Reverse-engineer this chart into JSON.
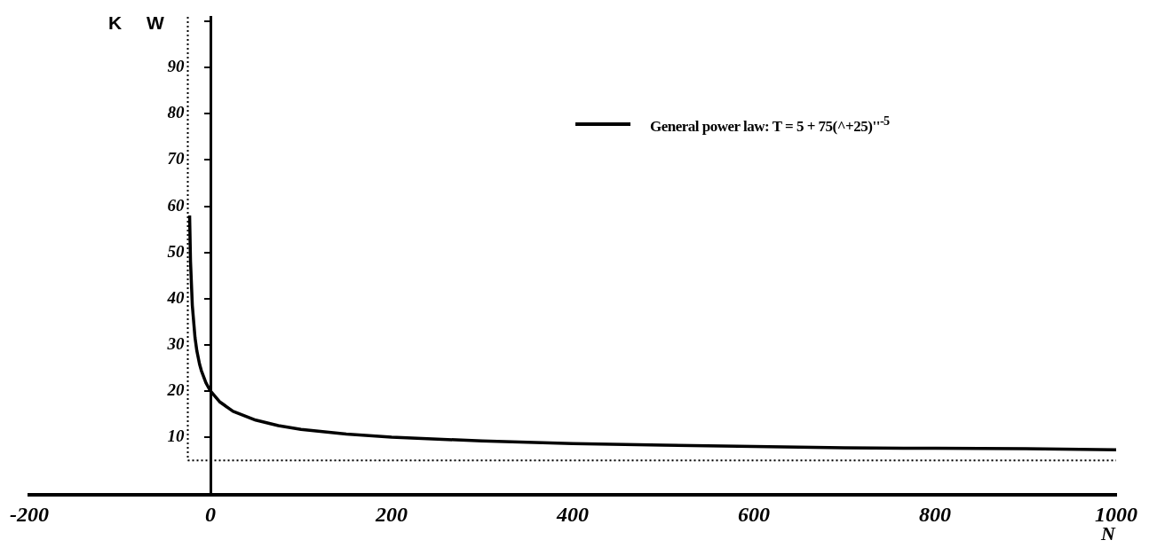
{
  "chart_data": {
    "type": "line",
    "xlabel": "N",
    "ylabel": "K W",
    "series": [
      {
        "name": "General power law: T = 5 + 75(^+25)''$^{-5}$",
        "color": "#000000",
        "x": [
          -23,
          -22,
          -20,
          -17,
          -15,
          -12,
          -10,
          -5,
          0,
          10,
          25,
          50,
          75,
          100,
          150,
          200,
          300,
          400,
          500,
          600,
          700,
          800,
          900,
          1000
        ],
        "values": [
          58,
          48,
          38.5,
          31.5,
          28.7,
          25.8,
          24.4,
          21.8,
          20,
          17.7,
          15.6,
          13.7,
          12.5,
          11.7,
          10.7,
          10,
          9.2,
          8.6,
          8.3,
          8,
          7.7,
          7.6,
          7.5,
          7.3
        ]
      }
    ],
    "xlim": [
      -200,
      1000
    ],
    "xticks": [
      -200,
      0,
      200,
      400,
      600,
      800,
      1000
    ],
    "ylim": [
      -2.5,
      101
    ],
    "yticks": [
      10,
      20,
      30,
      40,
      50,
      60,
      70,
      80,
      90,
      {
        "value": 100,
        "label": null
      }
    ],
    "ref_lines": [
      {
        "axis": "y",
        "value": 5,
        "color": "#000000",
        "line_style": "dotted"
      },
      {
        "axis": "x",
        "value": -25,
        "color": "#000000",
        "line_style": "dotted"
      }
    ],
    "grid": false,
    "legend": "top right",
    "marker": "none",
    "line_style": "solid"
  }
}
